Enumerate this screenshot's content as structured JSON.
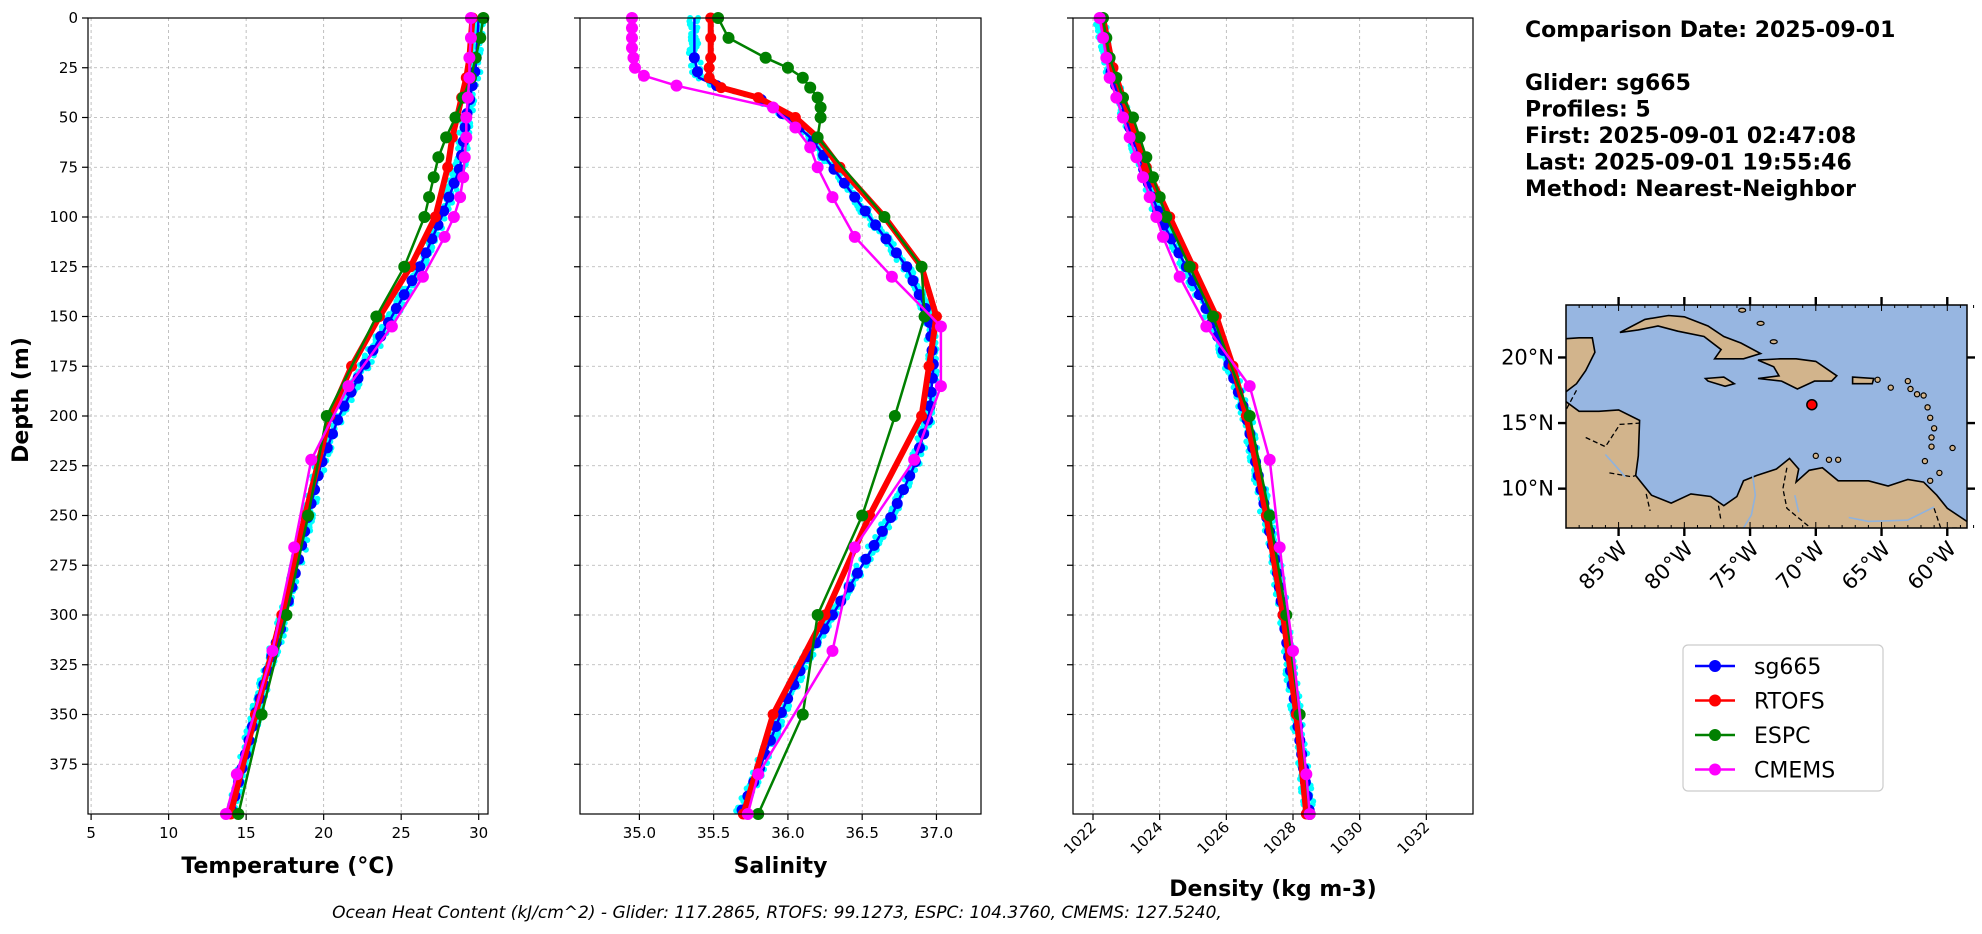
{
  "info": {
    "lines": [
      "Comparison Date: 2025-09-01",
      "",
      "Glider: sg665",
      "Profiles: 5",
      "First: 2025-09-01 02:47:08",
      "Last: 2025-09-01 19:55:46",
      "Method: Nearest-Neighbor"
    ]
  },
  "footer": "Ocean Heat Content (kJ/cm^2) - Glider: 117.2865,  RTOFS: 99.1273,  ESPC: 104.3760,  CMEMS: 127.5240,",
  "legend": [
    {
      "name": "sg665",
      "color": "#0000ff"
    },
    {
      "name": "RTOFS",
      "color": "#ff0000"
    },
    {
      "name": "ESPC",
      "color": "#008000"
    },
    {
      "name": "CMEMS",
      "color": "#ff00ff"
    }
  ],
  "colors": {
    "glider_raw": "#00ffff",
    "land": "#d2b48c",
    "ocean": "#97b6e1"
  },
  "map": {
    "lat_ticks": [
      "20°N",
      "15°N",
      "10°N"
    ],
    "lon_ticks": [
      "85°W",
      "80°W",
      "75°W",
      "70°W",
      "65°W",
      "60°W"
    ],
    "extent": {
      "lon": [
        -89,
        -58.5
      ],
      "lat": [
        7,
        24
      ]
    },
    "glider_position": {
      "lon": -70.3,
      "lat": 16.4
    }
  },
  "chart_data": [
    {
      "type": "line",
      "xlabel": "Temperature (°C)",
      "ylabel": "Depth (m)",
      "xlim": [
        4.8,
        30.6
      ],
      "ylim": [
        400,
        0
      ],
      "x_ticks": [
        5,
        10,
        15,
        20,
        25,
        30
      ],
      "y_ticks": [
        0,
        25,
        50,
        75,
        100,
        125,
        150,
        175,
        200,
        225,
        250,
        275,
        300,
        325,
        350,
        375
      ],
      "grid": true,
      "series": [
        {
          "name": "sg665",
          "depth": [
            0,
            25,
            50,
            75,
            100,
            125,
            150,
            175,
            200,
            225,
            250,
            275,
            300,
            325,
            350,
            375,
            400
          ],
          "values": [
            30.0,
            29.8,
            29.2,
            28.8,
            27.6,
            26.2,
            24.4,
            22.6,
            21.0,
            19.8,
            19.0,
            18.3,
            17.5,
            16.5,
            15.6,
            14.8,
            14.0
          ]
        },
        {
          "name": "RTOFS",
          "depth": [
            0,
            10,
            20,
            30,
            40,
            50,
            60,
            75,
            100,
            125,
            150,
            175,
            200,
            250,
            300,
            350,
            400
          ],
          "values": [
            29.6,
            29.5,
            29.4,
            29.2,
            28.9,
            28.6,
            28.3,
            28.0,
            27.2,
            25.6,
            23.6,
            21.8,
            20.4,
            18.8,
            17.3,
            15.6,
            14.0
          ]
        },
        {
          "name": "ESPC",
          "depth": [
            0,
            10,
            20,
            30,
            40,
            50,
            60,
            70,
            80,
            90,
            100,
            125,
            150,
            200,
            250,
            300,
            350,
            400
          ],
          "values": [
            30.3,
            30.1,
            29.8,
            29.5,
            29.0,
            28.5,
            27.9,
            27.4,
            27.1,
            26.8,
            26.5,
            25.2,
            23.4,
            20.2,
            19.0,
            17.6,
            16.0,
            14.5
          ]
        },
        {
          "name": "CMEMS",
          "depth": [
            0,
            10,
            20,
            30,
            40,
            50,
            60,
            70,
            80,
            90,
            100,
            110,
            130,
            155,
            185,
            222,
            266,
            318,
            380,
            400
          ],
          "values": [
            29.5,
            29.5,
            29.4,
            29.4,
            29.3,
            29.2,
            29.2,
            29.1,
            29.0,
            28.8,
            28.4,
            27.8,
            26.4,
            24.4,
            21.6,
            19.2,
            18.1,
            16.7,
            14.4,
            13.7
          ]
        }
      ]
    },
    {
      "type": "line",
      "xlabel": "Salinity",
      "ylim": [
        400,
        0
      ],
      "xlim": [
        34.6,
        37.3
      ],
      "x_ticks": [
        35.0,
        35.5,
        36.0,
        36.5,
        37.0
      ],
      "grid": true,
      "series": [
        {
          "name": "sg665",
          "depth": [
            0,
            10,
            20,
            30,
            35,
            40,
            50,
            60,
            75,
            100,
            125,
            150,
            175,
            200,
            225,
            250,
            275,
            300,
            325,
            350,
            375,
            400
          ],
          "values": [
            35.37,
            35.37,
            35.37,
            35.4,
            35.55,
            35.8,
            36.0,
            36.15,
            36.3,
            36.55,
            36.8,
            36.95,
            36.98,
            36.95,
            36.85,
            36.7,
            36.5,
            36.3,
            36.1,
            35.95,
            35.82,
            35.68
          ]
        },
        {
          "name": "RTOFS",
          "depth": [
            0,
            10,
            20,
            25,
            30,
            35,
            40,
            50,
            60,
            75,
            100,
            125,
            150,
            175,
            200,
            250,
            300,
            350,
            400
          ],
          "values": [
            35.48,
            35.48,
            35.48,
            35.47,
            35.47,
            35.55,
            35.8,
            36.05,
            36.2,
            36.35,
            36.65,
            36.9,
            37.0,
            36.95,
            36.9,
            36.55,
            36.25,
            35.9,
            35.7
          ]
        },
        {
          "name": "ESPC",
          "depth": [
            0,
            10,
            20,
            25,
            30,
            35,
            40,
            45,
            50,
            60,
            100,
            125,
            150,
            200,
            250,
            300,
            350,
            400
          ],
          "values": [
            35.53,
            35.6,
            35.85,
            36.0,
            36.1,
            36.15,
            36.2,
            36.22,
            36.22,
            36.2,
            36.65,
            36.9,
            36.92,
            36.72,
            36.5,
            36.2,
            36.1,
            35.8
          ]
        },
        {
          "name": "CMEMS",
          "depth": [
            0,
            5,
            10,
            15,
            20,
            25,
            29,
            34,
            45,
            55,
            65,
            75,
            90,
            110,
            130,
            155,
            185,
            222,
            266,
            318,
            380,
            400
          ],
          "values": [
            34.95,
            34.95,
            34.95,
            34.95,
            34.96,
            34.97,
            35.03,
            35.25,
            35.9,
            36.05,
            36.15,
            36.2,
            36.3,
            36.45,
            36.7,
            37.03,
            37.03,
            36.85,
            36.45,
            36.3,
            35.8,
            35.73
          ]
        }
      ]
    },
    {
      "type": "line",
      "xlabel": "Density (kg m-3)",
      "ylim": [
        400,
        0
      ],
      "xlim": [
        1021.4,
        1033.4
      ],
      "x_ticks": [
        1022,
        1024,
        1026,
        1028,
        1030,
        1032
      ],
      "grid": true,
      "series": [
        {
          "name": "sg665",
          "depth": [
            0,
            25,
            50,
            75,
            100,
            125,
            150,
            175,
            200,
            225,
            250,
            275,
            300,
            325,
            350,
            375,
            400
          ],
          "values": [
            1022.2,
            1022.5,
            1023.0,
            1023.5,
            1024.0,
            1024.8,
            1025.5,
            1026.1,
            1026.6,
            1026.9,
            1027.2,
            1027.5,
            1027.7,
            1027.9,
            1028.1,
            1028.3,
            1028.5
          ]
        },
        {
          "name": "RTOFS",
          "depth": [
            0,
            25,
            50,
            75,
            100,
            125,
            150,
            175,
            200,
            250,
            300,
            350,
            400
          ],
          "values": [
            1022.3,
            1022.6,
            1023.1,
            1023.6,
            1024.3,
            1025.0,
            1025.7,
            1026.2,
            1026.6,
            1027.2,
            1027.7,
            1028.1,
            1028.4
          ]
        },
        {
          "name": "ESPC",
          "depth": [
            0,
            10,
            20,
            30,
            40,
            50,
            60,
            70,
            80,
            90,
            100,
            125,
            150,
            200,
            250,
            300,
            350,
            400
          ],
          "values": [
            1022.3,
            1022.4,
            1022.5,
            1022.7,
            1022.9,
            1023.2,
            1023.4,
            1023.6,
            1023.8,
            1024.0,
            1024.2,
            1024.9,
            1025.6,
            1026.7,
            1027.3,
            1027.8,
            1028.2,
            1028.5
          ]
        },
        {
          "name": "CMEMS",
          "depth": [
            0,
            10,
            20,
            30,
            40,
            50,
            60,
            70,
            80,
            90,
            100,
            110,
            130,
            155,
            185,
            222,
            266,
            318,
            380,
            400
          ],
          "values": [
            1022.2,
            1022.3,
            1022.4,
            1022.5,
            1022.7,
            1022.9,
            1023.1,
            1023.3,
            1023.5,
            1023.7,
            1023.9,
            1024.1,
            1024.6,
            1025.4,
            1026.7,
            1027.3,
            1027.6,
            1028.0,
            1028.4,
            1028.5
          ]
        }
      ]
    }
  ]
}
